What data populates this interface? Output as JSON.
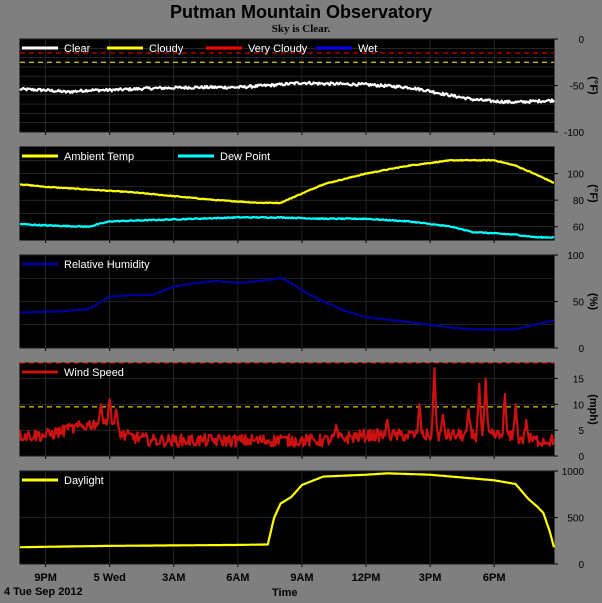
{
  "header": {
    "title": "Putman Mountain Observatory",
    "status": "Sky is Clear."
  },
  "footer": {
    "date_label": "4 Tue Sep 2012",
    "time_label": "Time"
  },
  "colors": {
    "background": "#7f7f7f",
    "panel": "#000000",
    "clear": "#ffffff",
    "cloudy": "#ffff00",
    "very_cloudy": "#ff0000",
    "wet": "#0000ff",
    "ambient": "#ffff00",
    "dew": "#00ffff",
    "humidity": "#000099",
    "wind": "#cc1111",
    "daylight": "#ffff00"
  },
  "chart_data": {
    "x_ticks": [
      {
        "label": "9PM",
        "t": 0.0
      },
      {
        "label": "5 Wed",
        "t": 3.0
      },
      {
        "label": "3AM",
        "t": 6.0
      },
      {
        "label": "6AM",
        "t": 9.0
      },
      {
        "label": "9AM",
        "t": 12.0
      },
      {
        "label": "12PM",
        "t": 15.0
      },
      {
        "label": "3PM",
        "t": 18.0
      },
      {
        "label": "6PM",
        "t": 21.0
      }
    ],
    "x_range": [
      -1.2,
      23.8
    ],
    "panels": [
      {
        "id": "sky",
        "type": "line",
        "ylabel": "(°F)",
        "ylim": [
          -100,
          0
        ],
        "yticks": [
          0,
          -50,
          -100
        ],
        "grid_minor": [
          0,
          -10,
          -20,
          -30,
          -40,
          -50,
          -60,
          -70,
          -80,
          -90,
          -100
        ],
        "threshold_lines": [
          {
            "value": -15,
            "color": "#ff0000",
            "dash": true
          },
          {
            "value": -25,
            "color": "#ffff00",
            "dash": true
          }
        ],
        "legend": [
          "Clear",
          "Cloudy",
          "Very Cloudy",
          "Wet"
        ],
        "series": [
          {
            "name": "Clear",
            "color": "#ffffff",
            "noise": 1.5,
            "points": [
              [
                -1.2,
                -54
              ],
              [
                0,
                -55
              ],
              [
                1,
                -57
              ],
              [
                2,
                -55
              ],
              [
                3,
                -55
              ],
              [
                5,
                -53
              ],
              [
                7,
                -52
              ],
              [
                9,
                -52
              ],
              [
                11,
                -49
              ],
              [
                12,
                -47
              ],
              [
                13,
                -48
              ],
              [
                15,
                -49
              ],
              [
                17,
                -52
              ],
              [
                18,
                -56
              ],
              [
                18.8,
                -60
              ],
              [
                20,
                -65
              ],
              [
                21,
                -67
              ],
              [
                22,
                -68
              ],
              [
                23.8,
                -66
              ]
            ]
          }
        ]
      },
      {
        "id": "temp",
        "type": "line",
        "ylabel": "(°F)",
        "ylim": [
          50,
          120
        ],
        "yticks": [
          100,
          80,
          60
        ],
        "grid_minor": [
          60,
          70,
          80,
          90,
          100,
          110
        ],
        "legend": [
          "Ambient Temp",
          "Dew Point"
        ],
        "series": [
          {
            "name": "Ambient Temp",
            "color": "#ffff00",
            "noise": 0.3,
            "points": [
              [
                -1.2,
                92
              ],
              [
                0,
                90
              ],
              [
                2,
                88
              ],
              [
                4,
                86
              ],
              [
                6,
                83
              ],
              [
                8,
                80
              ],
              [
                10,
                78
              ],
              [
                11,
                78
              ],
              [
                12,
                85
              ],
              [
                13,
                92
              ],
              [
                15,
                100
              ],
              [
                17,
                106
              ],
              [
                19,
                110
              ],
              [
                21,
                110
              ],
              [
                22,
                106
              ],
              [
                23,
                99
              ],
              [
                23.8,
                93
              ]
            ]
          },
          {
            "name": "Dew Point",
            "color": "#00ffff",
            "noise": 0.4,
            "points": [
              [
                -1.2,
                62
              ],
              [
                0,
                61
              ],
              [
                2,
                60
              ],
              [
                3,
                64
              ],
              [
                5,
                65
              ],
              [
                7,
                66
              ],
              [
                9,
                67
              ],
              [
                11,
                67
              ],
              [
                13,
                66
              ],
              [
                15,
                66
              ],
              [
                17,
                64
              ],
              [
                19,
                60
              ],
              [
                20,
                56
              ],
              [
                22,
                54
              ],
              [
                23,
                52
              ],
              [
                23.8,
                52
              ]
            ]
          }
        ]
      },
      {
        "id": "humidity",
        "type": "line",
        "ylabel": "(%)",
        "ylim": [
          0,
          100
        ],
        "yticks": [
          100,
          50,
          0
        ],
        "grid_minor": [
          0,
          25,
          50,
          75,
          100
        ],
        "legend": [
          "Relative Humidity"
        ],
        "series": [
          {
            "name": "Relative Humidity",
            "color": "#000099",
            "noise": 0.4,
            "points": [
              [
                -1.2,
                38
              ],
              [
                1,
                40
              ],
              [
                2,
                42
              ],
              [
                3,
                55
              ],
              [
                4,
                57
              ],
              [
                5,
                57
              ],
              [
                6,
                66
              ],
              [
                7,
                70
              ],
              [
                8,
                72
              ],
              [
                9,
                70
              ],
              [
                10,
                72
              ],
              [
                11,
                75
              ],
              [
                11.5,
                70
              ],
              [
                12,
                62
              ],
              [
                13,
                50
              ],
              [
                14,
                40
              ],
              [
                15,
                33
              ],
              [
                17,
                28
              ],
              [
                19,
                22
              ],
              [
                20,
                20
              ],
              [
                22,
                20
              ],
              [
                23.8,
                30
              ]
            ]
          }
        ]
      },
      {
        "id": "wind",
        "type": "line",
        "ylabel": "(mph)",
        "ylim": [
          0,
          18
        ],
        "yticks": [
          15,
          10,
          5,
          0
        ],
        "grid_minor": [
          0,
          5,
          10,
          15
        ],
        "threshold_lines": [
          {
            "value": 18,
            "color": "#ff0000",
            "dash": true
          },
          {
            "value": 9.5,
            "color": "#ffff00",
            "dash": true
          }
        ],
        "legend": [
          "Wind Speed"
        ],
        "series": [
          {
            "name": "Wind Speed",
            "color": "#cc1111",
            "noise": 1.2,
            "spikes": [
              [
                1,
                6
              ],
              [
                2,
                6
              ],
              [
                2.6,
                10
              ],
              [
                3,
                11
              ],
              [
                3.3,
                9
              ],
              [
                11,
                4
              ],
              [
                13.6,
                6
              ],
              [
                16,
                7
              ],
              [
                17.5,
                10
              ],
              [
                18.2,
                17
              ],
              [
                18.6,
                8
              ],
              [
                19.8,
                9
              ],
              [
                20.3,
                14
              ],
              [
                20.6,
                15
              ],
              [
                21.5,
                12
              ],
              [
                22,
                10
              ],
              [
                22.5,
                7
              ]
            ],
            "points": [
              [
                -1.2,
                4
              ],
              [
                0,
                4
              ],
              [
                1,
                5
              ],
              [
                2,
                6
              ],
              [
                3,
                7
              ],
              [
                3.6,
                4
              ],
              [
                5,
                3
              ],
              [
                7,
                3
              ],
              [
                9,
                3
              ],
              [
                11,
                3
              ],
              [
                13,
                3
              ],
              [
                15,
                4
              ],
              [
                17,
                4
              ],
              [
                19,
                4
              ],
              [
                21,
                4
              ],
              [
                23,
                3
              ],
              [
                23.8,
                3
              ]
            ]
          }
        ]
      },
      {
        "id": "daylight",
        "type": "line",
        "ylabel": "",
        "ylim": [
          0,
          1000
        ],
        "yticks": [
          1000,
          500,
          0
        ],
        "grid_minor": [
          0,
          500,
          1000
        ],
        "legend": [
          "Daylight"
        ],
        "series": [
          {
            "name": "Daylight",
            "color": "#ffff00",
            "noise": 0,
            "points": [
              [
                -1.2,
                180
              ],
              [
                0,
                185
              ],
              [
                3,
                195
              ],
              [
                6,
                200
              ],
              [
                9,
                205
              ],
              [
                10.4,
                210
              ],
              [
                10.7,
                500
              ],
              [
                11,
                650
              ],
              [
                11.5,
                720
              ],
              [
                12,
                850
              ],
              [
                13,
                940
              ],
              [
                15,
                960
              ],
              [
                16,
                975
              ],
              [
                18,
                960
              ],
              [
                20,
                920
              ],
              [
                21,
                900
              ],
              [
                22,
                860
              ],
              [
                22.6,
                700
              ],
              [
                23,
                620
              ],
              [
                23.3,
                550
              ],
              [
                23.6,
                350
              ],
              [
                23.8,
                180
              ]
            ]
          }
        ]
      }
    ]
  }
}
